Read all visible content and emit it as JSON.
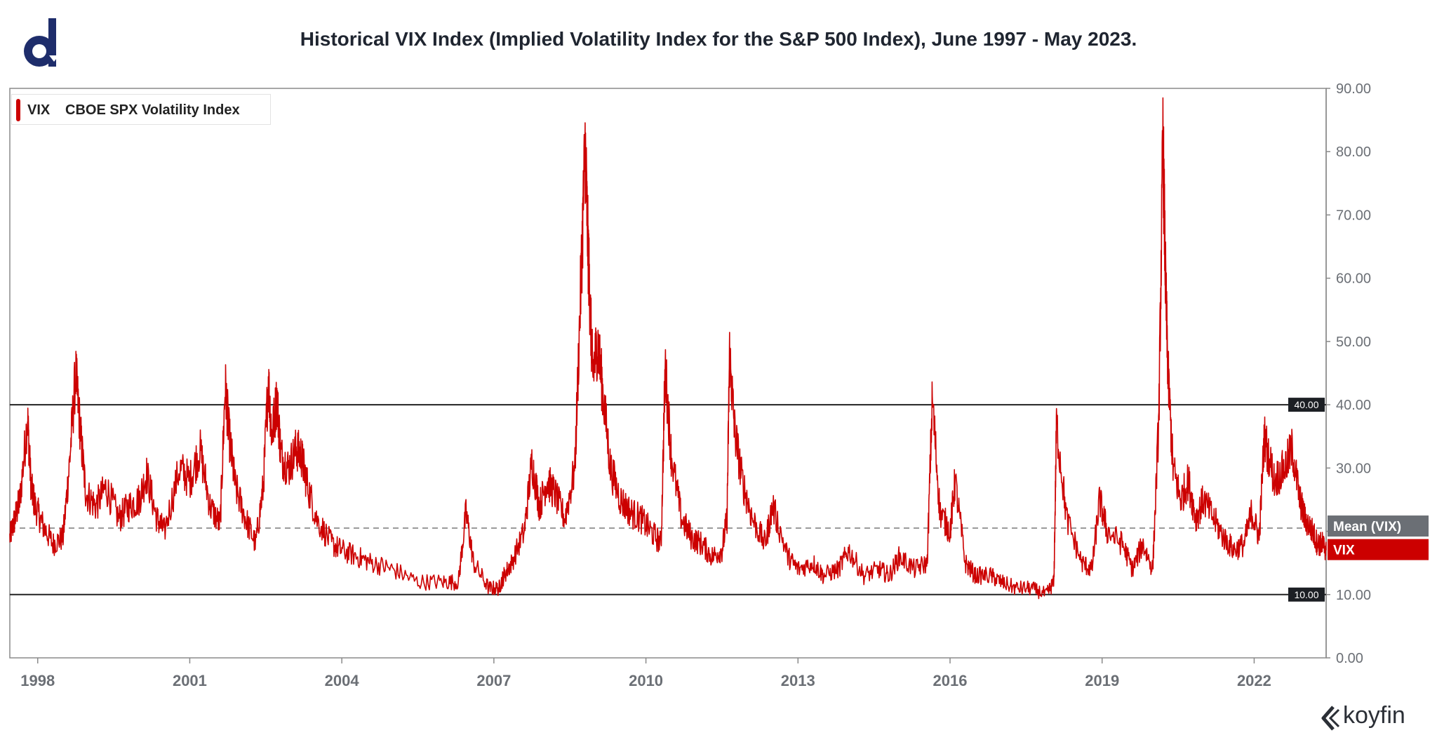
{
  "title": "Historical VIX Index (Implied Volatility Index for the S&P 500 Index), June 1997 - May 2023.",
  "brand": {
    "logo": "d-logo-icon",
    "watermark": "koyfin"
  },
  "legend": {
    "symbol": "VIX",
    "description": "CBOE SPX Volatility Index"
  },
  "colors": {
    "series": "#cc0000",
    "mean_badge": "#6b6f75",
    "reference_line": "#222222"
  },
  "chart_data": {
    "type": "line",
    "title": "Historical VIX Index (Implied Volatility Index for the S&P 500 Index), June 1997 - May 2023.",
    "x_range": [
      1997.45,
      2023.42
    ],
    "ylim": [
      0,
      90
    ],
    "y_ticks": [
      "0.00",
      "10.00",
      "20.00",
      "30.00",
      "40.00",
      "50.00",
      "60.00",
      "70.00",
      "80.00",
      "90.00"
    ],
    "y_axis_side": "right",
    "x_ticks": [
      "1998",
      "2001",
      "2004",
      "2007",
      "2010",
      "2013",
      "2016",
      "2019",
      "2022"
    ],
    "grid": false,
    "legend_position": "top-left",
    "reference_lines": [
      {
        "y": 40,
        "label": "40.00"
      },
      {
        "y": 10,
        "label": "10.00"
      }
    ],
    "mean": {
      "value": 20.5,
      "label": "Mean (VIX)"
    },
    "last_value_label": "VIX",
    "series": [
      {
        "name": "VIX",
        "x": [
          1997.45,
          1997.55,
          1997.65,
          1997.8,
          1997.87,
          1997.95,
          1998.1,
          1998.3,
          1998.5,
          1998.62,
          1998.75,
          1998.85,
          1998.95,
          1999.15,
          1999.35,
          1999.6,
          1999.8,
          2000.0,
          2000.15,
          2000.35,
          2000.5,
          2000.8,
          2001.0,
          2001.2,
          2001.4,
          2001.6,
          2001.7,
          2001.78,
          2001.9,
          2002.1,
          2002.3,
          2002.45,
          2002.55,
          2002.62,
          2002.72,
          2002.8,
          2002.95,
          2003.1,
          2003.2,
          2003.3,
          2003.5,
          2003.8,
          2004.0,
          2004.3,
          2004.6,
          2005.0,
          2005.5,
          2006.0,
          2006.3,
          2006.45,
          2006.6,
          2006.9,
          2007.1,
          2007.2,
          2007.35,
          2007.6,
          2007.75,
          2007.9,
          2008.05,
          2008.2,
          2008.4,
          2008.6,
          2008.72,
          2008.8,
          2008.85,
          2008.9,
          2008.95,
          2009.05,
          2009.15,
          2009.3,
          2009.5,
          2009.7,
          2009.9,
          2010.1,
          2010.3,
          2010.38,
          2010.5,
          2010.7,
          2010.9,
          2011.1,
          2011.3,
          2011.5,
          2011.6,
          2011.65,
          2011.75,
          2011.9,
          2012.1,
          2012.35,
          2012.5,
          2012.8,
          2013.0,
          2013.3,
          2013.5,
          2013.8,
          2014.0,
          2014.3,
          2014.6,
          2014.8,
          2015.0,
          2015.3,
          2015.55,
          2015.65,
          2015.8,
          2016.0,
          2016.1,
          2016.3,
          2016.5,
          2016.8,
          2017.0,
          2017.3,
          2017.6,
          2017.9,
          2018.05,
          2018.1,
          2018.3,
          2018.6,
          2018.8,
          2018.95,
          2019.1,
          2019.4,
          2019.6,
          2019.8,
          2020.0,
          2020.12,
          2020.2,
          2020.25,
          2020.3,
          2020.4,
          2020.55,
          2020.7,
          2020.85,
          2021.0,
          2021.2,
          2021.4,
          2021.6,
          2021.8,
          2021.95,
          2022.1,
          2022.2,
          2022.4,
          2022.6,
          2022.75,
          2022.9,
          2023.0,
          2023.15,
          2023.25,
          2023.35,
          2023.42
        ],
        "values": [
          19,
          22,
          25,
          38,
          27,
          24,
          21,
          18,
          19,
          30,
          45,
          35,
          26,
          24,
          27,
          22,
          24,
          25,
          29,
          22,
          20,
          30,
          28,
          33,
          24,
          21,
          43,
          35,
          27,
          22,
          18,
          27,
          44,
          35,
          41,
          32,
          30,
          33,
          32,
          28,
          22,
          18,
          17,
          16,
          15,
          14,
          12,
          12,
          12,
          23,
          15,
          11,
          11,
          13,
          15,
          20,
          31,
          24,
          28,
          26,
          22,
          30,
          60,
          81,
          67,
          55,
          45,
          50,
          42,
          30,
          25,
          23,
          22,
          20,
          18,
          46,
          32,
          22,
          19,
          18,
          16,
          17,
          22,
          48,
          36,
          28,
          22,
          18,
          24,
          16,
          14,
          15,
          13,
          14,
          17,
          13,
          14,
          13,
          16,
          14,
          15,
          41,
          23,
          20,
          28,
          15,
          13,
          13,
          12,
          11,
          11,
          10,
          12,
          37,
          22,
          15,
          14,
          25,
          20,
          18,
          14,
          18,
          14,
          38,
          82,
          60,
          45,
          30,
          25,
          28,
          22,
          25,
          22,
          19,
          17,
          18,
          23,
          19,
          35,
          28,
          30,
          33,
          25,
          22,
          20,
          18,
          18,
          17
        ]
      }
    ]
  }
}
